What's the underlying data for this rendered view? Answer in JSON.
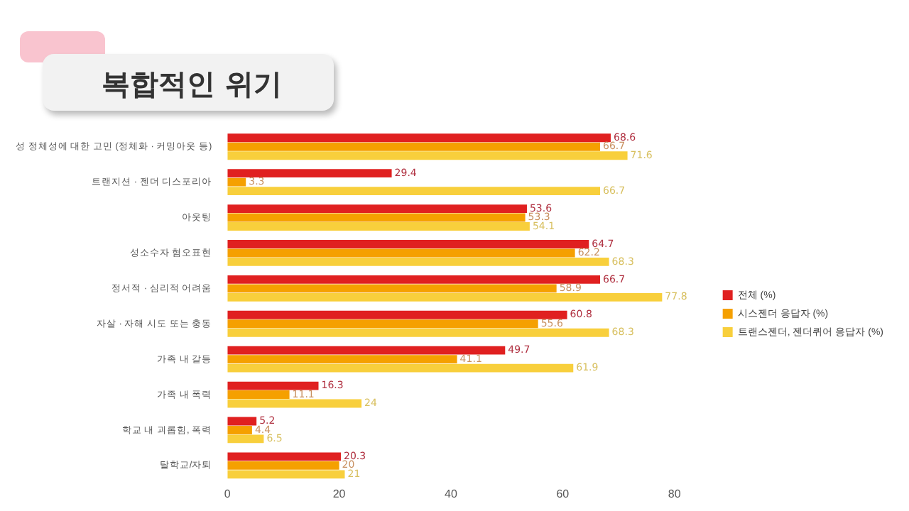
{
  "chart_data": {
    "type": "bar",
    "orientation": "horizontal",
    "title": "복합적인 위기",
    "categories": [
      "성 정체성에 대한 고민 (정체화 · 커밍아웃 등)",
      "트랜지션 · 젠더 디스포리아",
      "아웃팅",
      "성소수자 혐오표현",
      "정서적 · 심리적 어려움",
      "자살 · 자해 시도 또는 충동",
      "가족 내 갈등",
      "가족 내 폭력",
      "학교 내 괴롭힘, 폭력",
      "탈학교/자퇴"
    ],
    "series": [
      {
        "name": "전체 (%)",
        "color": "#e02020",
        "values": [
          68.6,
          29.4,
          53.6,
          64.7,
          66.7,
          60.8,
          49.7,
          16.3,
          5.2,
          20.3
        ]
      },
      {
        "name": "시스젠더 응답자 (%)",
        "color": "#f5a000",
        "values": [
          66.7,
          3.3,
          53.3,
          62.2,
          58.9,
          55.6,
          41.1,
          11.1,
          4.4,
          20
        ]
      },
      {
        "name": "트랜스젠더, 젠더퀴어 응답자 (%)",
        "color": "#f8cf3c",
        "values": [
          71.6,
          66.7,
          54.1,
          68.3,
          77.8,
          68.3,
          61.9,
          24.0,
          6.5,
          21.0
        ]
      }
    ],
    "xlim": [
      0,
      80
    ],
    "xticks": [
      0,
      20,
      40,
      60,
      80
    ],
    "grid": false,
    "legend": "right",
    "data_labels": true
  }
}
